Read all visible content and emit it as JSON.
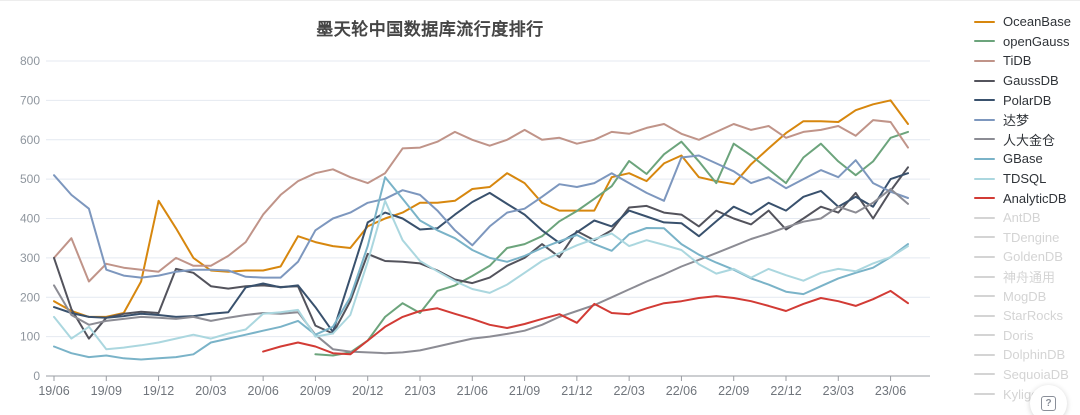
{
  "title": "墨天轮中国数据库流行度排行",
  "help_button": {
    "glyph": "?"
  },
  "legend": {
    "active_text_color": "#2f3338",
    "inactive_color": "#d4d4d4",
    "inactive_items": [
      "AntDB",
      "TDengine",
      "GoldenDB",
      "神舟通用",
      "MogDB",
      "StarRocks",
      "Doris",
      "DolphinDB",
      "SequoiaDB",
      "Kyligence"
    ]
  },
  "chart_data": {
    "type": "line",
    "title": "墨天轮中国数据库流行度排行",
    "x_interval": "monthly",
    "x_start": "2019/06",
    "x_end": "2023/07",
    "point_count": 50,
    "tick_every_months": 3,
    "tick_labels": [
      "19/06",
      "19/09",
      "19/12",
      "20/03",
      "20/06",
      "20/09",
      "20/12",
      "21/03",
      "21/06",
      "21/09",
      "21/12",
      "22/03",
      "22/06",
      "22/09",
      "22/12",
      "23/03",
      "23/06"
    ],
    "ylim": [
      0,
      800
    ],
    "y_step": 100,
    "grid": true,
    "grid_color": "#e4e9f1",
    "axis_color": "#9a9da3",
    "y_label_color": "#8f969e",
    "x_label_color": "#70757c",
    "legend_position": "right",
    "series": [
      {
        "name": "OceanBase",
        "color": "#d7870e",
        "values": [
          190,
          165,
          150,
          150,
          160,
          240,
          445,
          375,
          300,
          268,
          265,
          268,
          268,
          278,
          355,
          340,
          330,
          325,
          380,
          400,
          415,
          440,
          440,
          445,
          475,
          480,
          515,
          490,
          440,
          420,
          420,
          420,
          505,
          515,
          495,
          540,
          560,
          505,
          495,
          487,
          538,
          578,
          617,
          647,
          647,
          645,
          675,
          690,
          700,
          640
        ]
      },
      {
        "name": "openGauss",
        "color": "#6ca47c",
        "values": [
          null,
          null,
          null,
          null,
          null,
          null,
          null,
          null,
          null,
          null,
          null,
          null,
          null,
          null,
          null,
          55,
          52,
          60,
          90,
          150,
          185,
          160,
          216,
          230,
          254,
          280,
          325,
          335,
          355,
          393,
          419,
          450,
          482,
          546,
          513,
          563,
          595,
          545,
          490,
          590,
          560,
          525,
          490,
          555,
          590,
          545,
          510,
          545,
          605,
          620
        ]
      },
      {
        "name": "TiDB",
        "color": "#c09489",
        "values": [
          300,
          350,
          240,
          285,
          275,
          270,
          265,
          300,
          280,
          280,
          305,
          340,
          410,
          460,
          495,
          515,
          525,
          505,
          490,
          515,
          578,
          580,
          595,
          620,
          600,
          585,
          600,
          625,
          600,
          605,
          590,
          600,
          620,
          615,
          630,
          640,
          615,
          600,
          620,
          640,
          625,
          635,
          605,
          620,
          625,
          635,
          610,
          650,
          645,
          580
        ]
      },
      {
        "name": "GaussDB",
        "color": "#53535c",
        "values": [
          300,
          170,
          95,
          148,
          158,
          163,
          160,
          272,
          262,
          228,
          222,
          228,
          230,
          226,
          228,
          128,
          108,
          190,
          310,
          292,
          290,
          286,
          268,
          245,
          236,
          250,
          280,
          300,
          335,
          302,
          368,
          345,
          370,
          428,
          432,
          415,
          410,
          380,
          420,
          400,
          385,
          420,
          372,
          400,
          430,
          415,
          465,
          400,
          470,
          530
        ]
      },
      {
        "name": "PolarDB",
        "color": "#39516d",
        "values": [
          175,
          160,
          150,
          148,
          152,
          158,
          155,
          150,
          152,
          158,
          162,
          225,
          235,
          225,
          230,
          175,
          112,
          250,
          390,
          415,
          400,
          372,
          375,
          410,
          442,
          465,
          437,
          410,
          370,
          338,
          365,
          395,
          380,
          420,
          405,
          390,
          388,
          355,
          393,
          430,
          410,
          440,
          420,
          455,
          470,
          430,
          455,
          430,
          500,
          515
        ]
      },
      {
        "name": "达梦",
        "color": "#7d97be",
        "values": [
          510,
          460,
          425,
          270,
          255,
          250,
          255,
          265,
          270,
          270,
          268,
          252,
          250,
          250,
          290,
          370,
          400,
          415,
          440,
          450,
          472,
          460,
          420,
          370,
          332,
          380,
          415,
          425,
          455,
          487,
          480,
          490,
          515,
          490,
          465,
          445,
          555,
          560,
          540,
          520,
          490,
          505,
          477,
          500,
          523,
          505,
          548,
          490,
          468,
          452
        ]
      },
      {
        "name": "人大金仓",
        "color": "#8c8c94",
        "values": [
          230,
          155,
          130,
          140,
          145,
          150,
          148,
          145,
          150,
          140,
          148,
          155,
          160,
          158,
          162,
          105,
          68,
          62,
          60,
          58,
          60,
          65,
          75,
          85,
          95,
          100,
          107,
          115,
          130,
          150,
          165,
          180,
          200,
          220,
          240,
          258,
          278,
          295,
          312,
          330,
          348,
          362,
          378,
          392,
          400,
          430,
          415,
          440,
          475,
          437
        ]
      },
      {
        "name": "GBase",
        "color": "#7ab3c8",
        "values": [
          75,
          58,
          48,
          52,
          45,
          42,
          45,
          48,
          55,
          85,
          95,
          105,
          115,
          125,
          140,
          105,
          125,
          200,
          330,
          505,
          450,
          395,
          370,
          350,
          320,
          300,
          290,
          305,
          325,
          342,
          358,
          335,
          318,
          360,
          376,
          375,
          335,
          308,
          288,
          270,
          248,
          232,
          214,
          208,
          228,
          248,
          262,
          275,
          302,
          335
        ]
      },
      {
        "name": "TDSQL",
        "color": "#abd7df",
        "values": [
          150,
          95,
          125,
          68,
          72,
          78,
          85,
          95,
          105,
          95,
          108,
          118,
          158,
          162,
          168,
          100,
          108,
          155,
          290,
          445,
          345,
          292,
          266,
          241,
          221,
          211,
          232,
          262,
          292,
          312,
          332,
          348,
          362,
          330,
          345,
          333,
          320,
          284,
          260,
          272,
          250,
          272,
          256,
          242,
          262,
          272,
          266,
          286,
          302,
          330
        ]
      },
      {
        "name": "AnalyticDB",
        "color": "#d23b35",
        "values": [
          null,
          null,
          null,
          null,
          null,
          null,
          null,
          null,
          null,
          null,
          null,
          null,
          62,
          75,
          85,
          75,
          58,
          55,
          90,
          125,
          150,
          165,
          172,
          158,
          145,
          130,
          122,
          132,
          145,
          157,
          135,
          183,
          160,
          157,
          172,
          185,
          190,
          198,
          203,
          198,
          190,
          178,
          165,
          183,
          198,
          190,
          178,
          195,
          216,
          185
        ]
      }
    ]
  }
}
